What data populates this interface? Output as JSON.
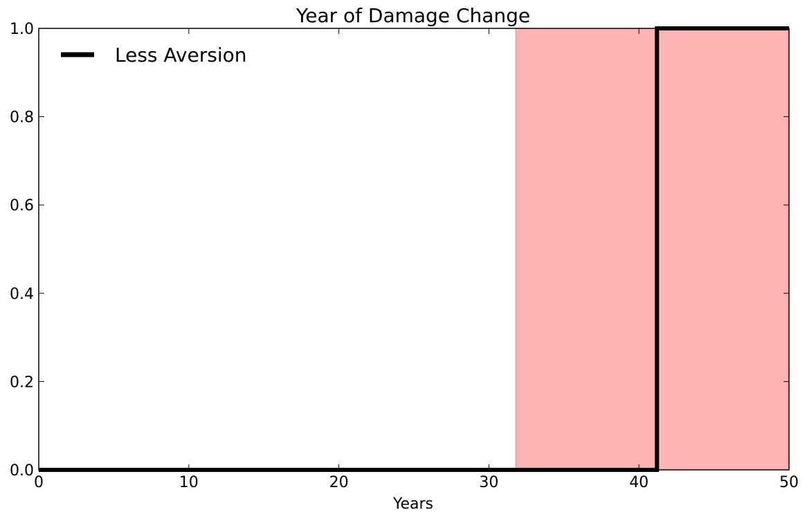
{
  "chart_data": {
    "type": "line",
    "title": "Year of Damage Change",
    "xlabel": "Years",
    "ylabel": "",
    "xlim": [
      0,
      50
    ],
    "ylim": [
      0.0,
      1.0
    ],
    "xticks": [
      "0",
      "10",
      "20",
      "30",
      "40",
      "50"
    ],
    "yticks": [
      "0.0",
      "0.2",
      "0.4",
      "0.6",
      "0.8",
      "1.0"
    ],
    "grid": false,
    "legend_position": "top-left",
    "shaded_region": {
      "x_start": 31.8,
      "x_end": 50,
      "color": "#ffb3b3"
    },
    "series": [
      {
        "name": "Less Aversion",
        "color": "#000000",
        "x": [
          0,
          41.2,
          41.2,
          50
        ],
        "y": [
          0,
          0,
          1,
          1
        ]
      }
    ]
  }
}
